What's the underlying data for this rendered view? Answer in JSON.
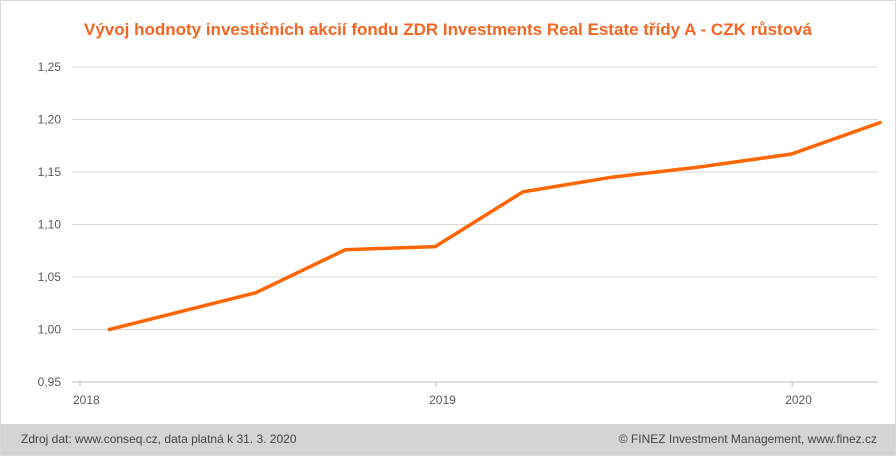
{
  "title": "Vývoj hodnoty investičních akcií fondu ZDR Investments Real Estate třídy A - CZK růstová",
  "footer": {
    "source": "Zdroj dat: www.conseq.cz, data platná k 31. 3. 2020",
    "copyright": "© FINEZ Investment Management, www.finez.cz"
  },
  "colors": {
    "title": "#f26522",
    "line": "#ff6600",
    "grid": "#d9d9d9",
    "footer_bg": "#d4d4d4"
  },
  "chart_data": {
    "type": "line",
    "title": "Vývoj hodnoty investičních akcií fondu ZDR Investments Real Estate třídy A - CZK růstová",
    "xlabel": "",
    "ylabel": "",
    "ylim": [
      0.95,
      1.25
    ],
    "xlim": [
      "2018-01-01",
      "2020-03-31"
    ],
    "y_ticks": [
      "0,95",
      "1,00",
      "1,05",
      "1,10",
      "1,15",
      "1,20",
      "1,25"
    ],
    "x_ticks": [
      "2018",
      "2019",
      "2020"
    ],
    "grid": "horizontal",
    "series": [
      {
        "x": [
          "2018-01-31",
          "2018-06-30",
          "2018-09-30",
          "2018-12-31",
          "2019-03-31",
          "2019-06-30",
          "2019-09-30",
          "2019-12-31",
          "2020-03-31"
        ],
        "y": [
          1.0,
          1.035,
          1.076,
          1.079,
          1.131,
          1.145,
          1.155,
          1.167,
          1.197
        ]
      }
    ]
  }
}
